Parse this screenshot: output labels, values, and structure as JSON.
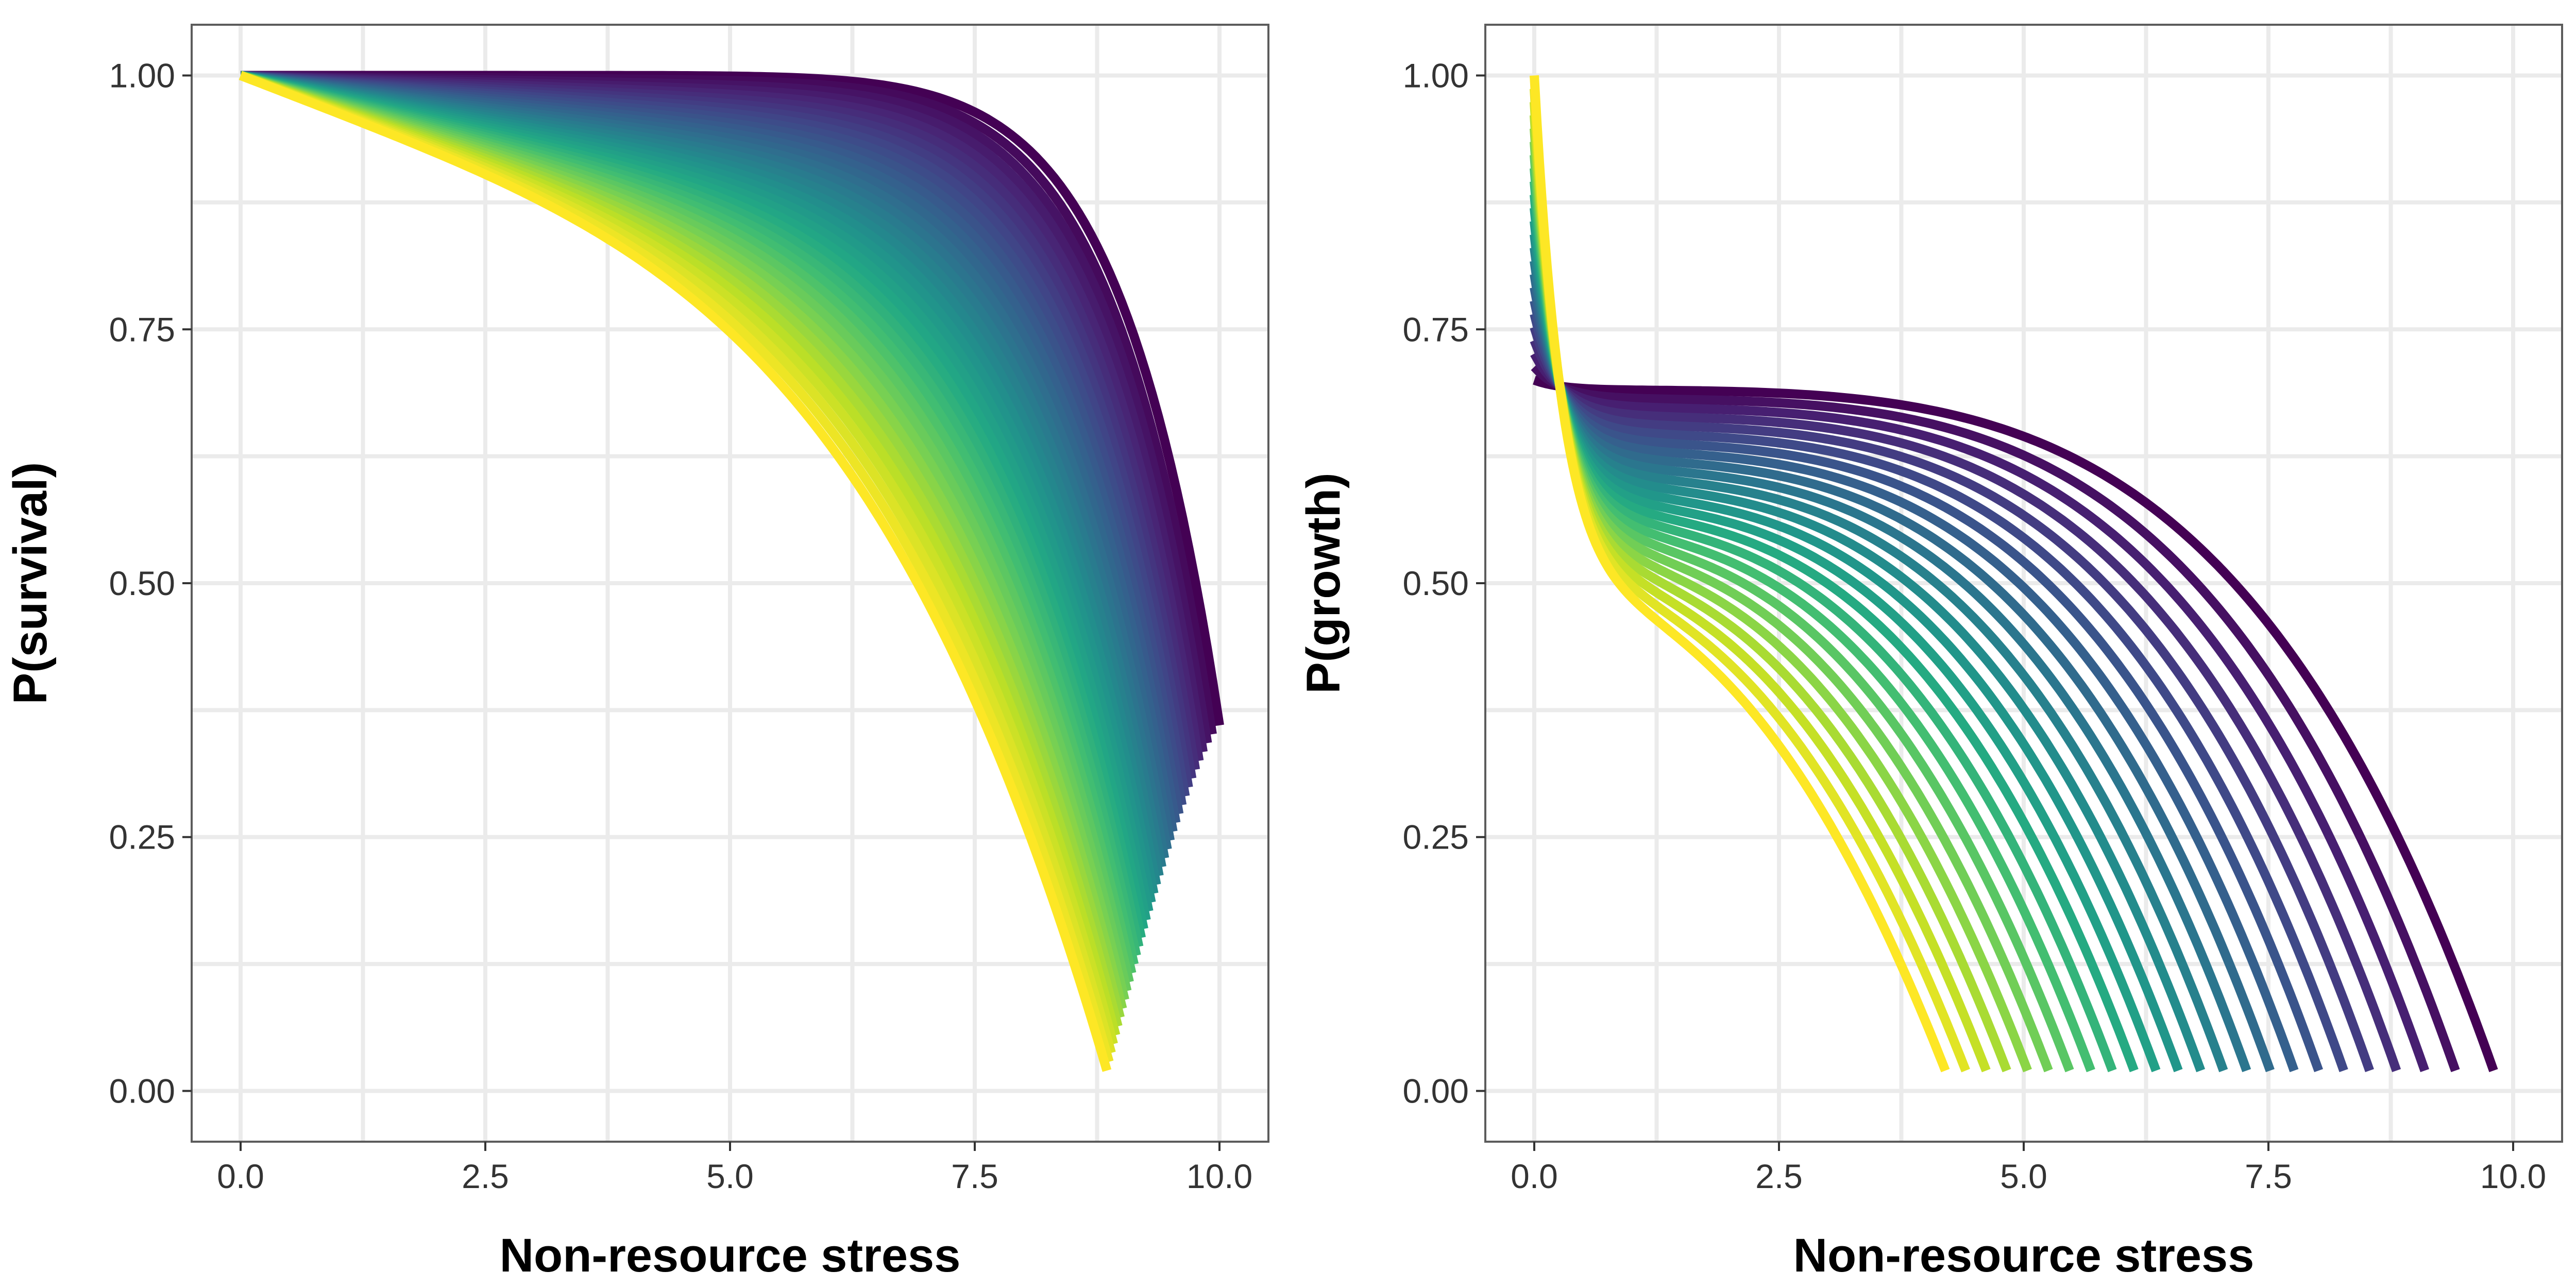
{
  "chart_data": [
    {
      "type": "line",
      "xlabel": "Non-resource stress",
      "ylabel": "P(survival)",
      "xlim": [
        -0.5,
        10.5
      ],
      "ylim": [
        -0.05,
        1.05
      ],
      "xticks": [
        "0.0",
        "2.5",
        "5.0",
        "7.5",
        "10.0"
      ],
      "xtick_values": [
        0,
        2.5,
        5,
        7.5,
        10
      ],
      "yticks": [
        "0.00",
        "0.25",
        "0.50",
        "0.75",
        "1.00"
      ],
      "ytick_values": [
        0,
        0.25,
        0.5,
        0.75,
        1
      ],
      "grid": true,
      "color_scale": "viridis",
      "series_count": 40,
      "series_first": {
        "x": [
          0,
          2,
          4,
          6,
          7,
          8,
          9,
          9.5,
          10
        ],
        "y": [
          1.0,
          1.0,
          0.998,
          0.98,
          0.95,
          0.87,
          0.7,
          0.56,
          0.34
        ]
      },
      "series_last": {
        "x": [
          0,
          1,
          2,
          3,
          4,
          5,
          6,
          7,
          7.5,
          8,
          8.5,
          8.85
        ],
        "y": [
          1.0,
          0.92,
          0.85,
          0.79,
          0.73,
          0.67,
          0.6,
          0.48,
          0.4,
          0.28,
          0.13,
          0.03
        ]
      }
    },
    {
      "type": "line",
      "xlabel": "Non-resource stress",
      "ylabel": "P(growth)",
      "xlim": [
        -0.5,
        10.5
      ],
      "ylim": [
        -0.05,
        1.05
      ],
      "xticks": [
        "0.0",
        "2.5",
        "5.0",
        "7.5",
        "10.0"
      ],
      "xtick_values": [
        0,
        2.5,
        5,
        7.5,
        10
      ],
      "yticks": [
        "0.00",
        "0.25",
        "0.50",
        "0.75",
        "1.00"
      ],
      "ytick_values": [
        0,
        0.25,
        0.5,
        0.75,
        1
      ],
      "grid": true,
      "color_scale": "viridis",
      "series_count": 24,
      "series_first": {
        "x": [
          0,
          1,
          2,
          3,
          4,
          5,
          6,
          7,
          8,
          9,
          9.8
        ],
        "y": [
          0.7,
          0.698,
          0.693,
          0.685,
          0.672,
          0.652,
          0.62,
          0.57,
          0.47,
          0.3,
          0.035
        ]
      },
      "series_last": {
        "x": [
          0,
          0.5,
          1,
          1.5,
          2,
          2.5,
          3,
          3.5,
          4,
          4.2
        ],
        "y": [
          1.0,
          0.84,
          0.71,
          0.6,
          0.48,
          0.38,
          0.29,
          0.19,
          0.07,
          0.015
        ]
      }
    }
  ]
}
